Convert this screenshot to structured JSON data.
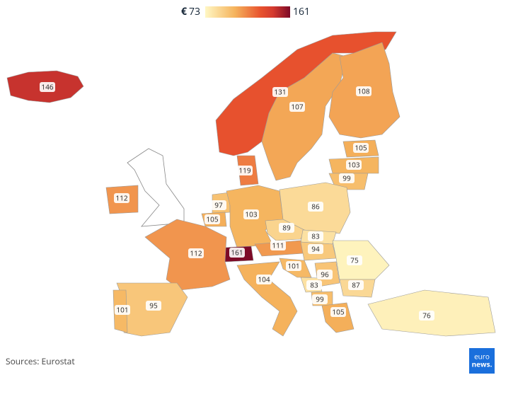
{
  "legend": {
    "currency": "€",
    "min": 73,
    "max": 161
  },
  "regions": {
    "values": [
      146,
      131,
      107,
      108,
      105,
      103,
      99,
      119,
      112,
      97,
      105,
      103,
      86,
      89,
      83,
      111,
      94,
      161,
      112,
      101,
      96,
      75,
      83,
      87,
      99,
      104,
      95,
      101,
      105,
      76
    ]
  },
  "source": "Sources: Eurostat",
  "logo": {
    "line1": "euro",
    "line2": "news."
  }
}
